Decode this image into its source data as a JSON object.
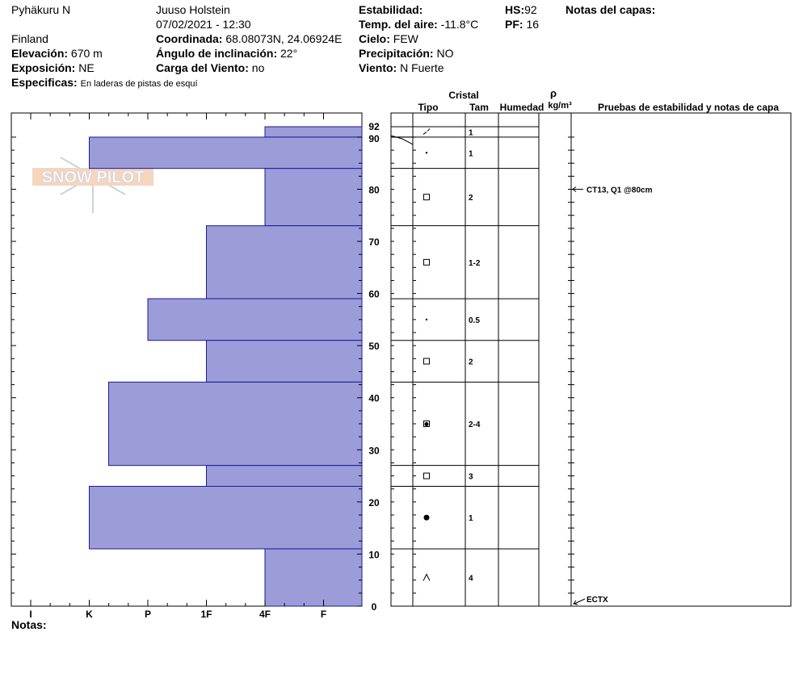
{
  "header": {
    "location": "Pyhäkuru N",
    "country": "Finland",
    "observer": "Juuso Holstein",
    "datetime": "07/02/2021 - 12:30",
    "elevation_label": "Elevación:",
    "elevation": "670 m",
    "exposure_label": "Exposición:",
    "exposure": "NE",
    "specifics_label": "Especificas:",
    "specifics": "En laderas de pistas de esquí",
    "coordinate_label": "Coordinada:",
    "coordinate": "68.08073N, 24.06924E",
    "slope_label": "Ángulo de inclinación:",
    "slope": "22°",
    "wind_load_label": "Carga del Viento:",
    "wind_load": "no",
    "stability_label": "Estabilidad:",
    "stability": "",
    "air_temp_label": "Temp. del aire:",
    "air_temp": "-11.8°C",
    "sky_label": "Cielo:",
    "sky": "FEW",
    "precip_label": "Precipitación:",
    "precip": "NO",
    "wind_label": "Viento:",
    "wind": "N Fuerte",
    "hs_label": "HS:",
    "hs": "92",
    "pf_label": "PF:",
    "pf": "16",
    "layer_notes_label": "Notas del capas:",
    "notes_label": "Notas:"
  },
  "logo": {
    "text": "SNOW PILOT"
  },
  "columns": {
    "crystal": "Cristal",
    "type": "Tipo",
    "size": "Tam",
    "humidity": "Humedad",
    "rho": "ρ",
    "density_unit": "kg/m³",
    "tests": "Pruebas de estabilidad y notas de capa"
  },
  "colors": {
    "hardness_fill": "#9c9cd8",
    "hardness_stroke": "#1a1a9c"
  },
  "chart_data": {
    "type": "bar",
    "orientation": "horizontal-step",
    "x_categories": [
      "I",
      "K",
      "P",
      "1F",
      "4F",
      "F"
    ],
    "y_ticks": [
      0,
      10,
      20,
      30,
      40,
      50,
      60,
      70,
      80,
      90,
      92
    ],
    "ylim": [
      0,
      92
    ],
    "layers": [
      {
        "top": 92,
        "bottom": 90,
        "hardness_index": 4.0,
        "grain": "decomposing",
        "size": "1"
      },
      {
        "top": 90,
        "bottom": 84,
        "hardness_index": 1.0,
        "grain": "fragments",
        "size": "1"
      },
      {
        "top": 84,
        "bottom": 73,
        "hardness_index": 4.0,
        "grain": "faceted",
        "size": "2"
      },
      {
        "top": 73,
        "bottom": 59,
        "hardness_index": 3.0,
        "grain": "faceted",
        "size": "1-2"
      },
      {
        "top": 59,
        "bottom": 51,
        "hardness_index": 2.0,
        "grain": "fragments",
        "size": "0.5"
      },
      {
        "top": 51,
        "bottom": 43,
        "hardness_index": 3.0,
        "grain": "faceted",
        "size": "2"
      },
      {
        "top": 43,
        "bottom": 27,
        "hardness_index": 1.33,
        "grain": "rounding-faceted",
        "size": "2-4"
      },
      {
        "top": 27,
        "bottom": 23,
        "hardness_index": 3.0,
        "grain": "faceted",
        "size": "3"
      },
      {
        "top": 23,
        "bottom": 11,
        "hardness_index": 1.0,
        "grain": "rounded",
        "size": "1"
      },
      {
        "top": 11,
        "bottom": 0,
        "hardness_index": 4.0,
        "grain": "depth-hoar",
        "size": "4"
      }
    ],
    "tests": [
      {
        "height": 80,
        "text": "CT13, Q1 @80cm"
      },
      {
        "height": 0,
        "text": "ECTX"
      }
    ]
  }
}
